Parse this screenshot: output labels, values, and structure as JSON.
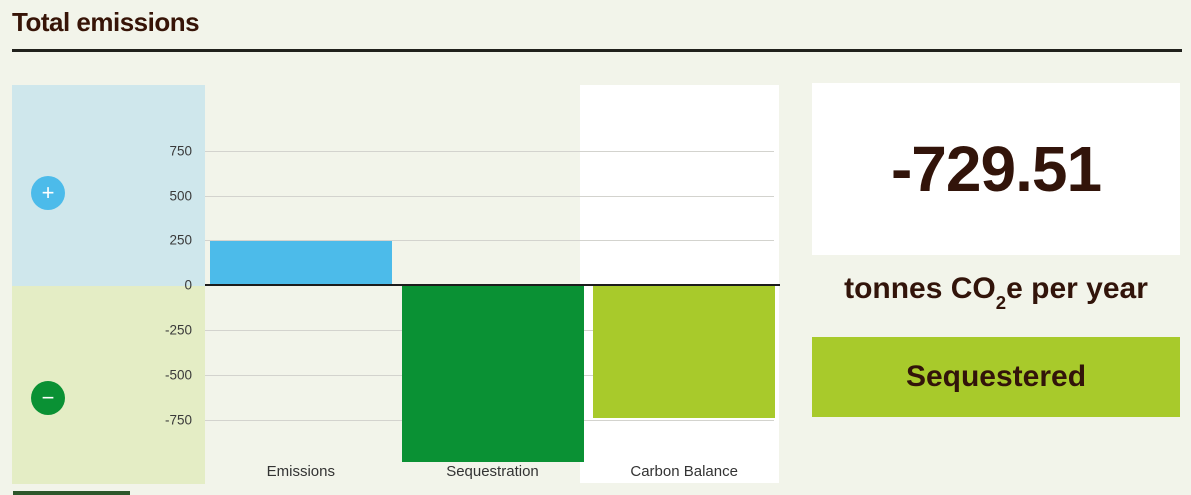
{
  "page": {
    "title": "Total emissions",
    "background": "#f2f4ea",
    "text_color": "#32140a"
  },
  "chart_data": {
    "type": "bar",
    "title": "Total emissions",
    "categories": [
      "Emissions",
      "Sequestration",
      "Carbon Balance"
    ],
    "values": [
      245,
      -975,
      -729.51
    ],
    "bar_colors": [
      "#4cbbea",
      "#0a9134",
      "#a8ca2b"
    ],
    "highlighted_category": "Carbon Balance",
    "xlabel": "",
    "ylabel": "tonnes CO2e per year",
    "yticks": [
      750,
      500,
      250,
      0,
      -250,
      -500,
      -750
    ],
    "ylim": [
      -1105,
      1115
    ],
    "grid": true,
    "legend": "none"
  },
  "axis_panel": {
    "plus_icon": "+",
    "minus_icon": "−",
    "positive_bg": "#cfe7ec",
    "negative_bg": "#e4edc5",
    "plus_bg": "#4cbbea",
    "minus_bg": "#0a9134"
  },
  "summary": {
    "value": "-729.51",
    "unit_prefix": "tonnes CO",
    "unit_sub": "2",
    "unit_suffix": "e per year",
    "status_label": "Sequestered",
    "status_bg": "#a8ca2b"
  }
}
